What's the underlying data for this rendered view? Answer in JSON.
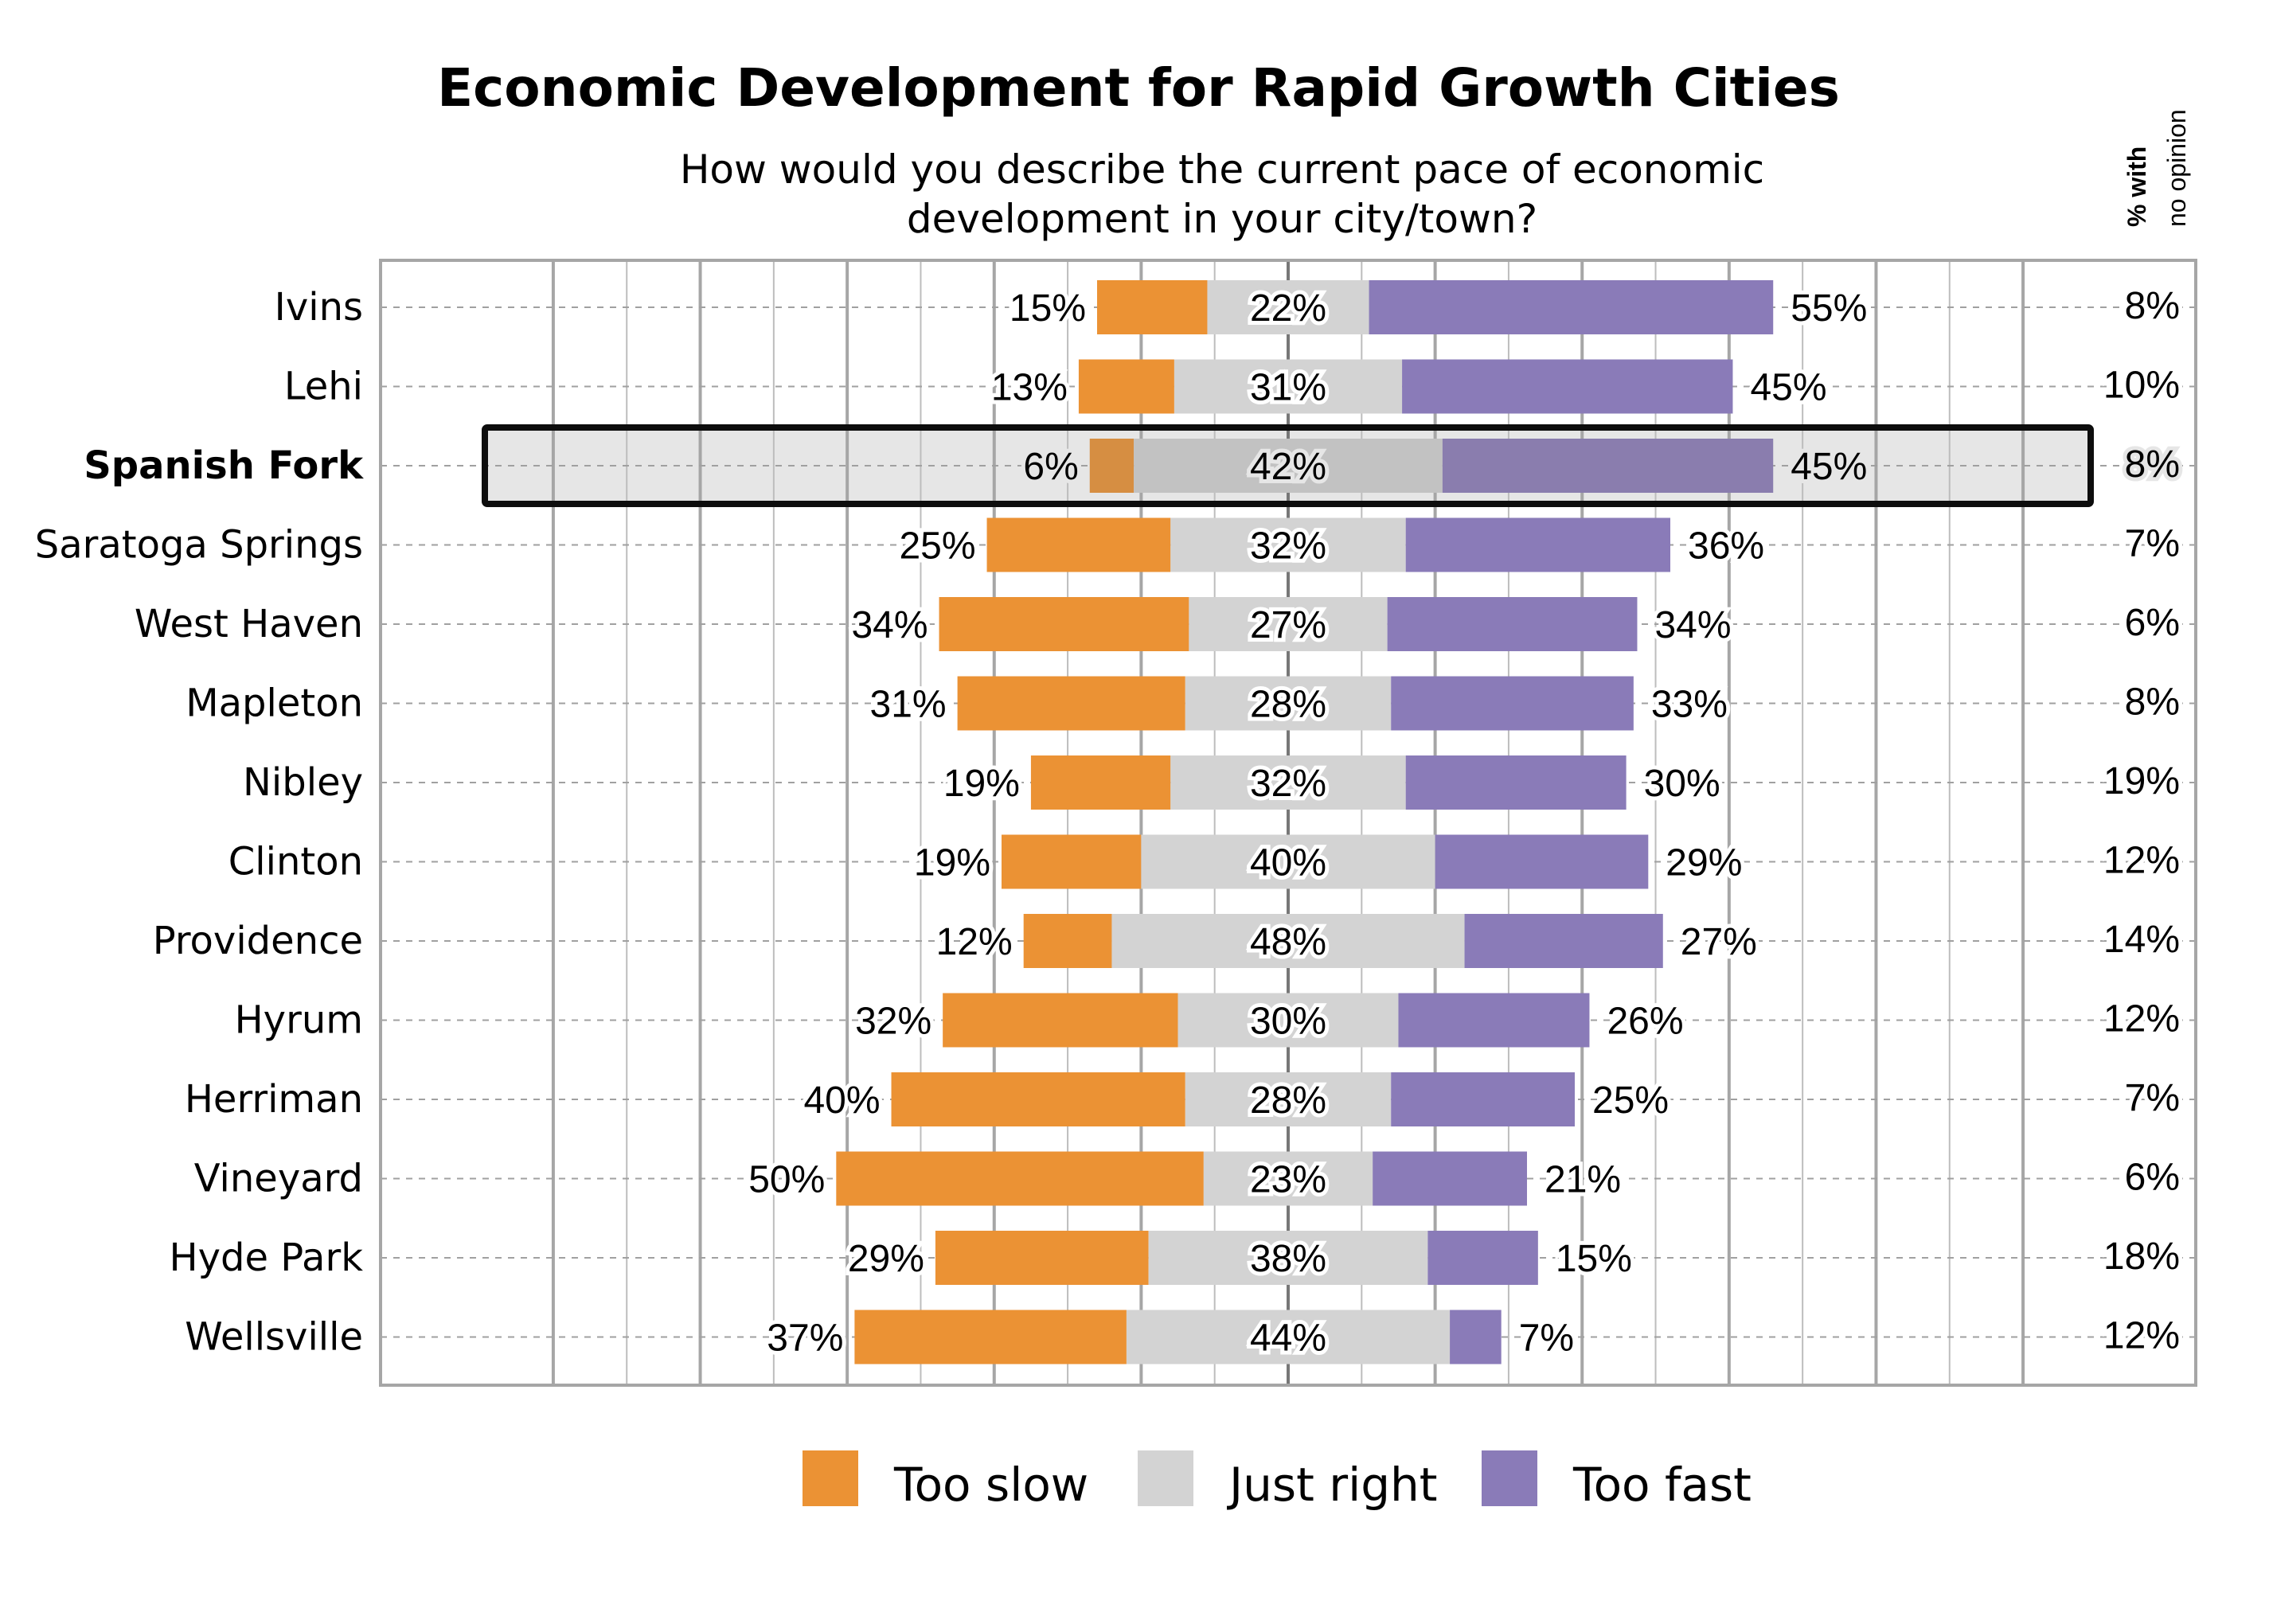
{
  "chart_data": {
    "type": "bar",
    "orientation": "horizontal-diverging",
    "title": "Economic Development for Rapid Growth Cities",
    "subtitle": [
      "How would you describe the current pace of economic",
      "development in your city/town?"
    ],
    "side_column_header": [
      "% with",
      "no opinion"
    ],
    "categories": [
      "Ivins",
      "Lehi",
      "Spanish Fork",
      "Saratoga Springs",
      "West Haven",
      "Mapleton",
      "Nibley",
      "Clinton",
      "Providence",
      "Hyrum",
      "Herriman",
      "Vineyard",
      "Hyde Park",
      "Wellsville"
    ],
    "highlighted_category": "Spanish Fork",
    "series": [
      {
        "name": "Too slow",
        "color": "#EB9234",
        "highlight_color": "#D68E42",
        "values": [
          15,
          13,
          6,
          25,
          34,
          31,
          19,
          19,
          12,
          32,
          40,
          50,
          29,
          37
        ]
      },
      {
        "name": "Just right",
        "color": "#D3D3D3",
        "highlight_color": "#C2C2C2",
        "values": [
          22,
          31,
          42,
          32,
          27,
          28,
          32,
          40,
          48,
          30,
          28,
          23,
          38,
          44
        ]
      },
      {
        "name": "Too fast",
        "color": "#8A7BB8",
        "highlight_color": "#8A7DAE",
        "values": [
          55,
          45,
          45,
          36,
          34,
          33,
          30,
          29,
          27,
          26,
          25,
          21,
          15,
          7
        ]
      }
    ],
    "no_opinion": [
      8,
      10,
      8,
      7,
      6,
      8,
      19,
      12,
      14,
      12,
      7,
      6,
      18,
      12
    ],
    "value_suffix": "%",
    "xlim": [
      -123.5,
      123.5
    ],
    "grid": true,
    "legend": "bottom"
  }
}
